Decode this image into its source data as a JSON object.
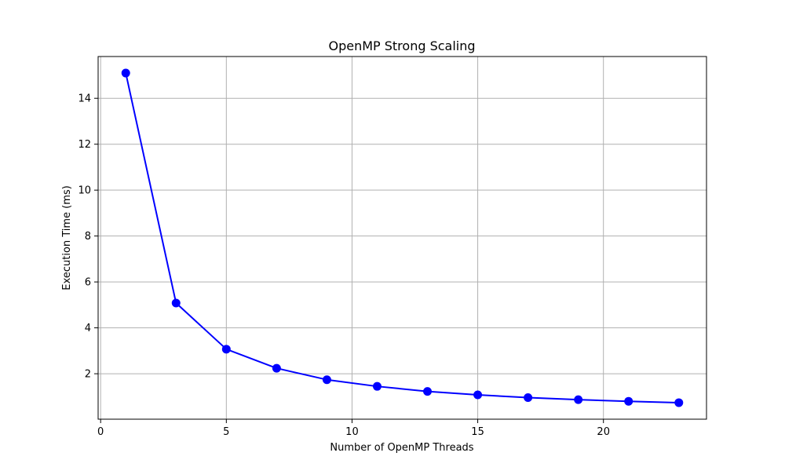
{
  "chart_data": {
    "type": "line",
    "title": "OpenMP Strong Scaling",
    "xlabel": "Number of OpenMP Threads",
    "ylabel": "Execution Time (ms)",
    "x": [
      1,
      3,
      5,
      7,
      9,
      11,
      13,
      15,
      17,
      19,
      21,
      23
    ],
    "series": [
      {
        "values": [
          15.1,
          5.08,
          3.07,
          2.24,
          1.74,
          1.45,
          1.23,
          1.08,
          0.96,
          0.87,
          0.8,
          0.74
        ],
        "color": "#0000ff",
        "marker": "circle"
      }
    ],
    "xlim": [
      -0.1,
      24.1
    ],
    "ylim": [
      0.02,
      15.82
    ],
    "xticks": [
      0,
      5,
      10,
      15,
      20
    ],
    "yticks": [
      2,
      4,
      6,
      8,
      10,
      12,
      14
    ],
    "xtick_labels": [
      "0",
      "5",
      "10",
      "15",
      "20"
    ],
    "ytick_labels": [
      "2",
      "4",
      "6",
      "8",
      "10",
      "12",
      "14"
    ],
    "grid": true,
    "grid_color": "#b0b0b0",
    "legend": "none"
  }
}
